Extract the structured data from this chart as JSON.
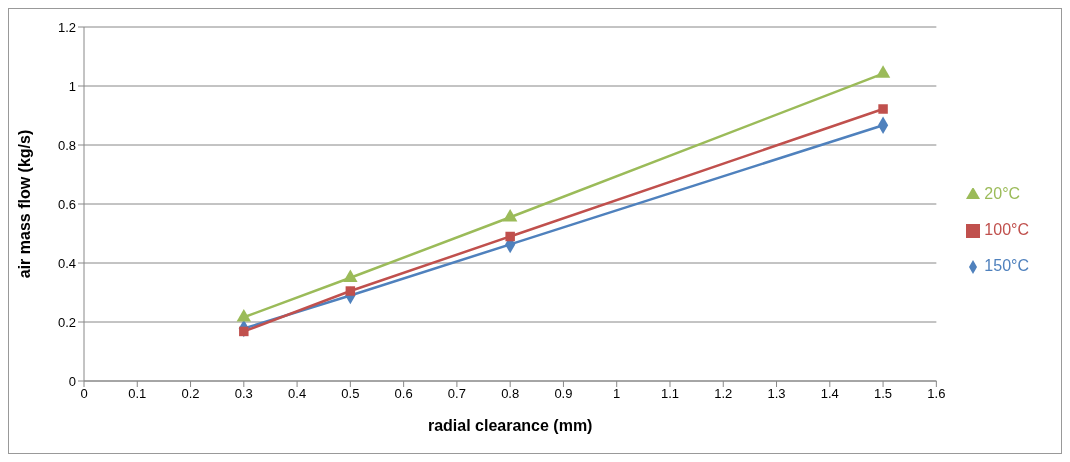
{
  "chart_data": {
    "type": "line",
    "xlabel": "radial clearance (mm)",
    "ylabel": "air mass flow (kg/s)",
    "x": [
      0.3,
      0.5,
      0.8,
      1.5
    ],
    "series": [
      {
        "name": "20°C",
        "color": "#9bbb59",
        "marker": "triangle",
        "values": [
          0.216,
          0.35,
          0.555,
          1.042
        ]
      },
      {
        "name": "100°C",
        "color": "#c0504d",
        "marker": "square",
        "values": [
          0.168,
          0.305,
          0.49,
          0.922
        ]
      },
      {
        "name": "150°C",
        "color": "#4f81bd",
        "marker": "diamond",
        "values": [
          0.178,
          0.29,
          0.463,
          0.867
        ]
      }
    ],
    "xlim": [
      0,
      1.6
    ],
    "xticks": [
      0,
      0.1,
      0.2,
      0.3,
      0.4,
      0.5,
      0.6,
      0.7,
      0.8,
      0.9,
      1,
      1.1,
      1.2,
      1.3,
      1.4,
      1.5,
      1.6
    ],
    "ylim": [
      0,
      1.2
    ],
    "yticks": [
      0,
      0.2,
      0.4,
      0.6,
      0.8,
      1,
      1.2
    ],
    "grid": "y",
    "legend": "right",
    "line_style": "solid"
  }
}
